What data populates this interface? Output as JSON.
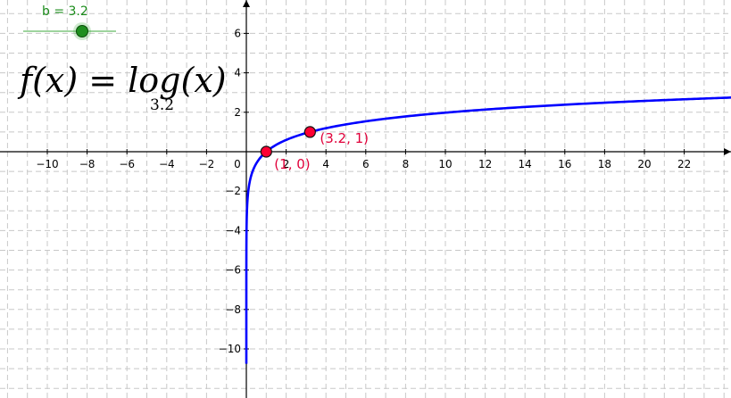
{
  "slider": {
    "label": "b = 3.2",
    "value": 3.2,
    "min": -5,
    "max": 5
  },
  "formula": {
    "text": "f(x) = log(x)",
    "base": "3.2"
  },
  "axes": {
    "x_ticks": [
      "−10",
      "−8",
      "−6",
      "−4",
      "−2",
      "0",
      "2",
      "4",
      "6",
      "8",
      "10",
      "12",
      "14",
      "16",
      "18",
      "20",
      "22"
    ],
    "y_ticks": [
      "6",
      "4",
      "2",
      "−2",
      "−4",
      "−6",
      "−8",
      "−10"
    ]
  },
  "points": [
    {
      "label": "(1, 0)",
      "x": 1,
      "y": 0
    },
    {
      "label": "(3.2, 1)",
      "x": 3.2,
      "y": 1
    }
  ],
  "colors": {
    "curve": "#0000ff",
    "point": "#ff0033",
    "point_label": "#e0003a",
    "slider": "#1f8f1f",
    "grid": "#c8c8c8"
  }
}
